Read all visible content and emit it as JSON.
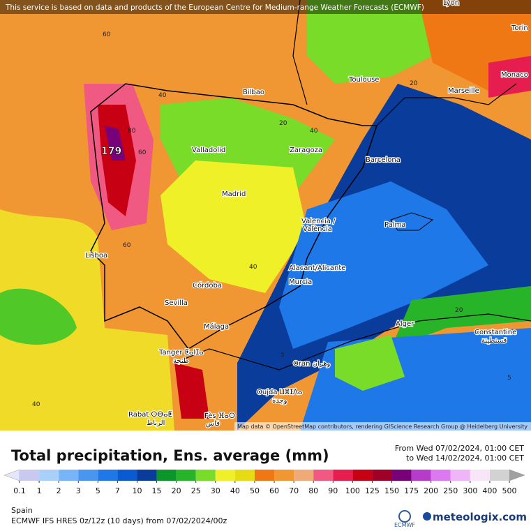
{
  "banner": "This service is based on data and products of the European Centre for Medium-range Weather Forecasts (ECMWF)",
  "cities": [
    "Lyon",
    "Torin",
    "Monaco",
    "Toulouse",
    "Marseille",
    "Bilbao",
    "Valladolid",
    "Zaragoza",
    "Barcelona",
    "Madrid",
    "Valencia /",
    "València",
    "Palma",
    "Lisboa",
    "Alacant/Alicante",
    "Murcia",
    "Córdoba",
    "Sevilla",
    "Alger",
    "Constantine",
    "قسنطينة",
    "Málaga",
    "Tanger ⵟⴰⵏⵊⴰ",
    "طنجة",
    "Oran وهران",
    "Oujda ⵡⴻⵊⴷⴰ",
    "وجدة",
    "Rabat ⵔⴱⴰⵟ",
    "الرباط",
    "Fès ⴼⴰⵙ",
    "فاس"
  ],
  "contour_labels": [
    "60",
    "40",
    "80",
    "179",
    "60",
    "60",
    "40",
    "20",
    "40",
    "20",
    "20",
    "5",
    "5",
    "40"
  ],
  "attribution": "Map data © OpenStreetMap contributors, rendering GIScience Research Group @ Heidelberg University",
  "legend": {
    "title": "Total precipitation, Ens. average (mm)",
    "from": "From Wed 07/02/2024, 01:00 CET",
    "to": "to Wed 14/02/2024, 01:00 CET",
    "colorbar": {
      "ticks": [
        0.1,
        1,
        2,
        3,
        5,
        7,
        10,
        15,
        20,
        25,
        30,
        40,
        50,
        60,
        70,
        80,
        90,
        100,
        125,
        150,
        175,
        200,
        250,
        300,
        400,
        500
      ],
      "colors": [
        "#c8c8f0",
        "#a8d0f8",
        "#78b4f8",
        "#4896f0",
        "#1e78e8",
        "#0a5ad2",
        "#0a3c9c",
        "#0a9628",
        "#28b428",
        "#78dc28",
        "#f0f028",
        "#e6dc14",
        "#f07814",
        "#f09632",
        "#f0aa78",
        "#f05a82",
        "#e61e50",
        "#c80014",
        "#a00028",
        "#780078",
        "#b43cc8",
        "#dc78f0",
        "#f0b4f8",
        "#f8e6f8",
        "#d2d2d2"
      ],
      "under_color": "#e6e6fa",
      "over_color": "#a0a0a0"
    }
  },
  "footer": {
    "region": "Spain",
    "model": "ECMWF IFS HRES 0z/12z (10 days) from 07/02/2024/00z",
    "ecmwf": "ECMWF",
    "brand": "meteologix.com"
  }
}
